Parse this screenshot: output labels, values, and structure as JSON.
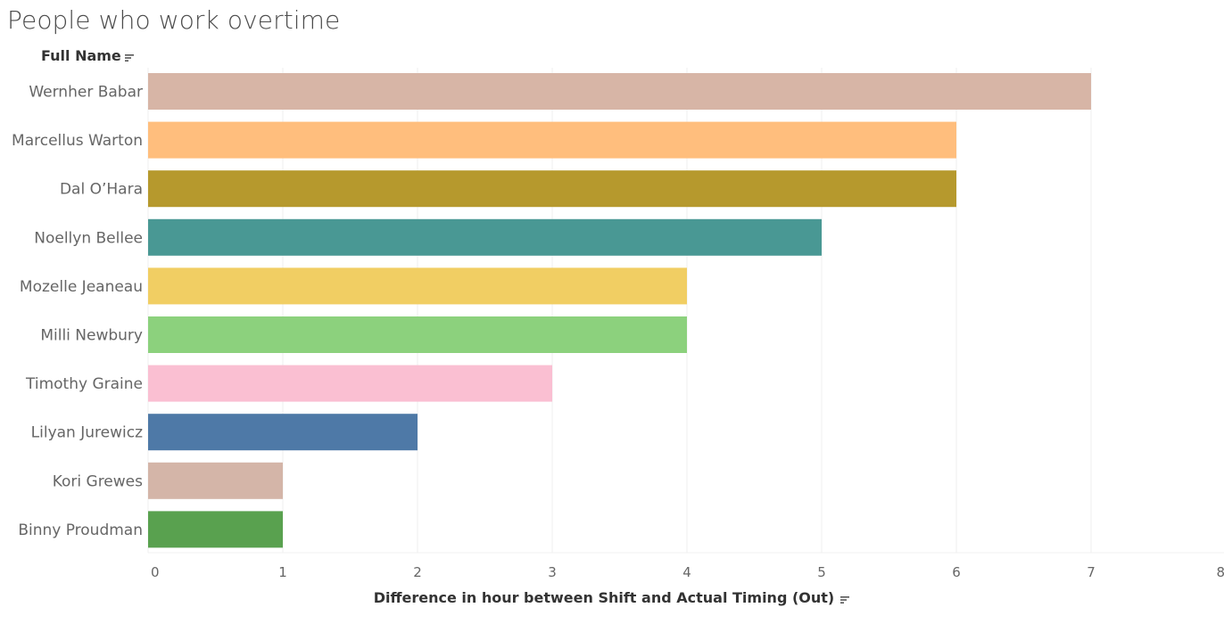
{
  "title": "People who work overtime",
  "row_header": "Full Name",
  "x_axis_title": "Difference in hour between Shift and Actual Timing (Out)",
  "icons": {
    "row_sort": "sort-descending-icon",
    "x_sort": "sort-descending-icon"
  },
  "chart_data": {
    "type": "bar",
    "orientation": "horizontal",
    "title": "People who work overtime",
    "ylabel": "Full Name",
    "xlabel": "Difference in hour between Shift and Actual Timing (Out)",
    "categories": [
      "Wernher Babar",
      "Marcellus Warton",
      "Dal O’Hara",
      "Noellyn Bellee",
      "Mozelle Jeaneau",
      "Milli Newbury",
      "Timothy Graine",
      "Lilyan Jurewicz",
      "Kori Grewes",
      "Binny Proudman"
    ],
    "values": [
      7,
      6,
      6,
      5,
      4,
      4,
      3,
      2,
      1,
      1
    ],
    "colors": [
      "#d7b5a6",
      "#ffbe7d",
      "#b6992d",
      "#499894",
      "#f1ce63",
      "#8cd17d",
      "#fabfd2",
      "#4e79a7",
      "#d4b5a8",
      "#59a14f"
    ],
    "xlim": [
      0,
      8
    ],
    "xticks": [
      0,
      1,
      2,
      3,
      4,
      5,
      6,
      7,
      8
    ],
    "grid": true,
    "legend": "none"
  }
}
